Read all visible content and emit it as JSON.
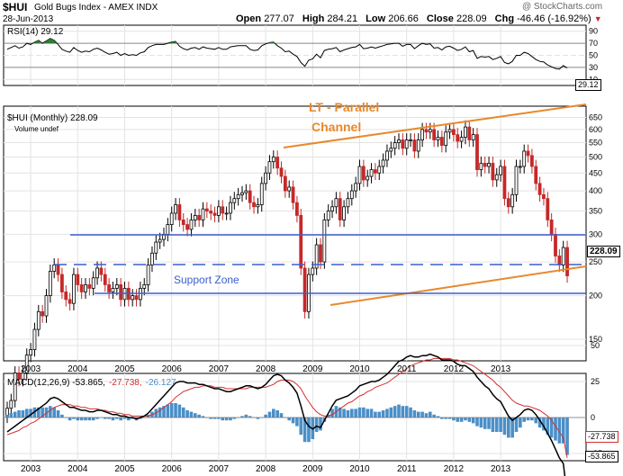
{
  "header": {
    "symbol": "$HUI",
    "name": "Gold Bugs Index - AMEX INDX",
    "date": "28-Jun-2013",
    "open_label": "Open",
    "open": "277.07",
    "high_label": "High",
    "high": "284.21",
    "low_label": "Low",
    "low": "206.66",
    "close_label": "Close",
    "close": "228.09",
    "chg_label": "Chg",
    "chg": "-46.46 (-16.92%)",
    "brand": "@ StockCharts.com"
  },
  "rsi_panel": {
    "legend": "RSI(14) 29.12",
    "scale": [
      "90",
      "70",
      "50",
      "30",
      "10"
    ],
    "last_value": "29.12",
    "overbought": 70,
    "oversold": 30,
    "color": "#000000",
    "fill_color": "#2e7d32"
  },
  "price_panel": {
    "legend": "$HUI (Monthly) 228.09",
    "volume_legend": "Volume undef",
    "scale": [
      "650",
      "600",
      "550",
      "500",
      "450",
      "400",
      "350",
      "300",
      "250",
      "200",
      "150"
    ],
    "last_price": "228.09",
    "annotations": {
      "channel_title_1": "LT - Parallel",
      "channel_title_2": "Channel",
      "support_zone": "Support Zone"
    },
    "colors": {
      "up": "#000000",
      "down": "#c62828",
      "channel": "#e8892b",
      "support": "#3a5fcd"
    }
  },
  "macd_panel": {
    "legend_prefix": "MACD(12,26,9) -53.865,",
    "legend_signal": "-27.738,",
    "legend_hist": "-26.127",
    "scale": [
      "50",
      "25",
      "0",
      "-25"
    ],
    "signal_value": "-27.738",
    "macd_value": "-53.865",
    "colors": {
      "macd": "#000000",
      "signal": "#d32f2f",
      "hist": "#4a8fc8"
    }
  },
  "x_axis_years": [
    "2003",
    "2004",
    "2005",
    "2006",
    "2007",
    "2008",
    "2009",
    "2010",
    "2011",
    "2012",
    "2013"
  ],
  "chart_data": {
    "type": "candlestick",
    "interval": "monthly",
    "x_start": "2003-01",
    "price_scale": "log",
    "ylim": [
      130,
      700
    ],
    "close": [
      95,
      100,
      120,
      115,
      120,
      135,
      140,
      160,
      180,
      175,
      200,
      235,
      245,
      230,
      205,
      195,
      190,
      230,
      215,
      205,
      215,
      210,
      225,
      240,
      230,
      215,
      205,
      210,
      215,
      195,
      210,
      195,
      200,
      195,
      210,
      215,
      245,
      265,
      285,
      290,
      300,
      320,
      345,
      365,
      330,
      320,
      310,
      330,
      340,
      330,
      355,
      350,
      345,
      340,
      360,
      345,
      345,
      370,
      380,
      390,
      395,
      400,
      370,
      360,
      365,
      420,
      450,
      485,
      500,
      465,
      440,
      400,
      410,
      370,
      340,
      240,
      180,
      230,
      240,
      280,
      250,
      330,
      350,
      360,
      380,
      330,
      360,
      380,
      400,
      420,
      470,
      430,
      440,
      460,
      450,
      470,
      490,
      520,
      530,
      550,
      560,
      530,
      560,
      560,
      520,
      560,
      600,
      590,
      600,
      560,
      570,
      540,
      590,
      600,
      580,
      555,
      570,
      610,
      560,
      580,
      460,
      480,
      470,
      480,
      430,
      445,
      470,
      380,
      360,
      390,
      470,
      470,
      520,
      505,
      470,
      420,
      390,
      380,
      330,
      300,
      260,
      245,
      275,
      228
    ],
    "pipes": [
      {
        "x": "2003-01",
        "open": 90,
        "high": 110,
        "low": 80,
        "close": 100
      }
    ],
    "rsi": [
      60,
      63,
      66,
      62,
      64,
      70,
      68,
      72,
      75,
      70,
      74,
      78,
      75,
      68,
      60,
      57,
      55,
      63,
      58,
      55,
      57,
      56,
      60,
      62,
      59,
      55,
      52,
      53,
      55,
      50,
      53,
      50,
      51,
      50,
      54,
      56,
      63,
      66,
      68,
      68,
      68,
      70,
      72,
      73,
      65,
      61,
      59,
      62,
      63,
      60,
      64,
      62,
      61,
      60,
      63,
      60,
      60,
      64,
      65,
      66,
      66,
      66,
      60,
      58,
      59,
      66,
      69,
      71,
      72,
      66,
      62,
      56,
      57,
      52,
      48,
      38,
      32,
      42,
      44,
      52,
      46,
      58,
      60,
      61,
      63,
      56,
      59,
      61,
      63,
      64,
      68,
      61,
      62,
      64,
      62,
      64,
      66,
      68,
      69,
      70,
      70,
      65,
      68,
      68,
      61,
      66,
      70,
      68,
      69,
      62,
      63,
      59,
      64,
      65,
      62,
      58,
      60,
      64,
      56,
      58,
      45,
      48,
      47,
      48,
      43,
      45,
      48,
      38,
      36,
      40,
      50,
      50,
      55,
      53,
      48,
      43,
      40,
      39,
      34,
      31,
      28,
      27,
      33,
      29
    ],
    "macd": [
      -10,
      -8,
      -6,
      -4,
      -2,
      0,
      2,
      4,
      6,
      8,
      10,
      13,
      14,
      13,
      11,
      9,
      7,
      7,
      6,
      5,
      5,
      4,
      4,
      5,
      5,
      4,
      3,
      2,
      2,
      1,
      1,
      0,
      0,
      -1,
      0,
      1,
      3,
      6,
      9,
      12,
      15,
      18,
      21,
      24,
      25,
      25,
      24,
      24,
      24,
      23,
      23,
      22,
      21,
      20,
      20,
      19,
      18,
      18,
      19,
      20,
      21,
      22,
      22,
      21,
      20,
      21,
      23,
      26,
      29,
      30,
      29,
      26,
      24,
      21,
      17,
      8,
      -2,
      -6,
      -8,
      -6,
      -7,
      -2,
      3,
      8,
      12,
      13,
      14,
      15,
      17,
      19,
      22,
      23,
      24,
      25,
      25,
      26,
      28,
      30,
      33,
      36,
      39,
      40,
      42,
      43,
      42,
      42,
      43,
      43,
      44,
      43,
      42,
      40,
      40,
      40,
      39,
      37,
      36,
      36,
      34,
      32,
      28,
      25,
      22,
      20,
      16,
      13,
      11,
      6,
      1,
      -2,
      0,
      2,
      5,
      6,
      5,
      2,
      -2,
      -6,
      -11,
      -16,
      -22,
      -28,
      -32,
      -54
    ],
    "signal": [
      -12,
      -11,
      -10,
      -9,
      -7,
      -6,
      -4,
      -3,
      -1,
      1,
      3,
      5,
      7,
      8,
      9,
      9,
      9,
      8,
      8,
      7,
      7,
      6,
      6,
      6,
      5,
      5,
      4,
      4,
      3,
      3,
      2,
      2,
      1,
      1,
      1,
      1,
      1,
      2,
      3,
      5,
      7,
      9,
      11,
      14,
      16,
      18,
      19,
      20,
      21,
      21,
      22,
      22,
      22,
      21,
      21,
      21,
      20,
      20,
      20,
      20,
      20,
      20,
      21,
      21,
      21,
      21,
      21,
      22,
      23,
      25,
      26,
      26,
      26,
      25,
      23,
      20,
      15,
      11,
      7,
      4,
      2,
      1,
      1,
      2,
      4,
      6,
      8,
      10,
      11,
      13,
      15,
      16,
      18,
      19,
      21,
      22,
      23,
      24,
      26,
      28,
      30,
      32,
      34,
      36,
      37,
      38,
      39,
      40,
      40,
      41,
      41,
      41,
      41,
      41,
      40,
      40,
      39,
      38,
      37,
      36,
      34,
      32,
      30,
      28,
      26,
      23,
      21,
      18,
      15,
      12,
      10,
      9,
      8,
      8,
      7,
      6,
      5,
      3,
      1,
      -2,
      -6,
      -10,
      -14,
      -28
    ],
    "histogram": [
      2,
      3,
      4,
      5,
      5,
      6,
      6,
      7,
      7,
      7,
      7,
      8,
      7,
      5,
      2,
      0,
      -2,
      -1,
      -2,
      -2,
      -2,
      -2,
      -2,
      -1,
      0,
      -1,
      -1,
      -2,
      -1,
      -2,
      -1,
      -2,
      -1,
      -2,
      -1,
      0,
      2,
      4,
      6,
      7,
      8,
      9,
      10,
      10,
      9,
      7,
      5,
      4,
      3,
      2,
      1,
      0,
      -1,
      -1,
      -1,
      -2,
      -2,
      -2,
      -1,
      0,
      1,
      2,
      1,
      0,
      -1,
      0,
      2,
      4,
      6,
      5,
      3,
      0,
      -2,
      -4,
      -6,
      -12,
      -17,
      -17,
      -15,
      -10,
      -9,
      -3,
      2,
      6,
      8,
      7,
      6,
      5,
      6,
      6,
      7,
      7,
      6,
      6,
      4,
      4,
      5,
      6,
      7,
      8,
      9,
      8,
      8,
      7,
      5,
      4,
      4,
      3,
      4,
      2,
      1,
      -1,
      -1,
      -1,
      -2,
      -3,
      -3,
      -2,
      -3,
      -4,
      -6,
      -7,
      -8,
      -8,
      -10,
      -10,
      -10,
      -12,
      -14,
      -14,
      -10,
      -7,
      -3,
      -2,
      -2,
      -4,
      -7,
      -9,
      -12,
      -14,
      -16,
      -18,
      -18,
      -26
    ]
  }
}
